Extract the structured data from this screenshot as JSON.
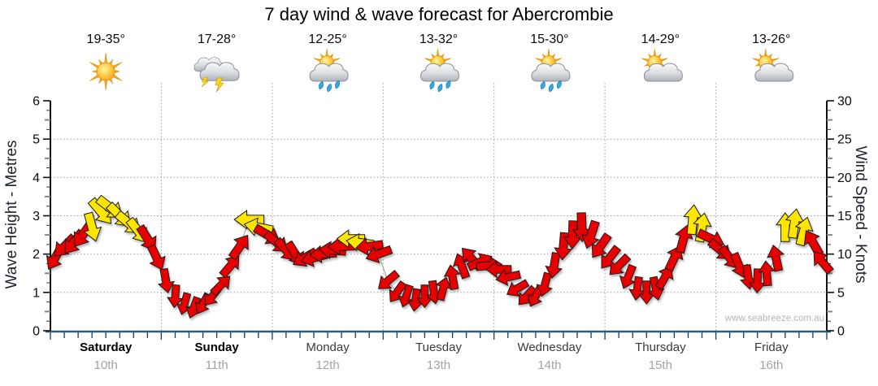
{
  "title": "7 day wind & wave forecast for Abercrombie",
  "watermark": "www.seabreeze.com.au",
  "days": [
    {
      "name": "Saturday",
      "date": "10th",
      "temp": "19-35°",
      "icon": "sunny",
      "weekend": true
    },
    {
      "name": "Sunday",
      "date": "11th",
      "temp": "17-28°",
      "icon": "thunderstorms",
      "weekend": true
    },
    {
      "name": "Monday",
      "date": "12th",
      "temp": "12-25°",
      "icon": "rain",
      "weekend": false
    },
    {
      "name": "Tuesday",
      "date": "13th",
      "temp": "13-32°",
      "icon": "rain",
      "weekend": false
    },
    {
      "name": "Wednesday",
      "date": "14th",
      "temp": "15-30°",
      "icon": "rain",
      "weekend": false
    },
    {
      "name": "Thursday",
      "date": "15th",
      "temp": "14-29°",
      "icon": "partly-cloudy",
      "weekend": false
    },
    {
      "name": "Friday",
      "date": "16th",
      "temp": "13-26°",
      "icon": "partly-cloudy",
      "weekend": false
    }
  ],
  "chart_data": {
    "type": "scatter",
    "variant": "wind-arrow-forecast",
    "title": "7 day wind & wave forecast for Abercrombie",
    "x_categories": [
      "Saturday 10th",
      "Sunday 11th",
      "Monday 12th",
      "Tuesday 13th",
      "Wednesday 14th",
      "Thursday 15th",
      "Friday 16th"
    ],
    "left_axis": {
      "label": "Wave Height - Metres",
      "range": [
        0,
        6
      ],
      "tick_labels": [
        "0",
        "1",
        "2",
        "3",
        "4",
        "5",
        "6"
      ]
    },
    "right_axis": {
      "label": "Wind Speed - Knots",
      "range": [
        0,
        30
      ],
      "tick_labels": [
        "0",
        "5",
        "10",
        "15",
        "20",
        "25",
        "30"
      ]
    },
    "grid": true,
    "arrow_colors": {
      "r": "#e60000",
      "y": "#ffe600"
    },
    "time_step_hours": 2,
    "point_fields": [
      "day_index",
      "hour",
      "wind_speed_knots",
      "arrow_direction_deg_screen",
      "color"
    ],
    "points": [
      [
        0,
        0,
        9.5,
        210,
        "r"
      ],
      [
        0,
        2,
        11,
        225,
        "r"
      ],
      [
        0,
        4,
        11.5,
        218,
        "r"
      ],
      [
        0,
        6,
        12.5,
        215,
        "r"
      ],
      [
        0,
        8,
        13.5,
        165,
        "y"
      ],
      [
        0,
        10,
        15.5,
        140,
        "y"
      ],
      [
        0,
        12,
        16,
        128,
        "y"
      ],
      [
        0,
        14,
        15,
        135,
        "y"
      ],
      [
        0,
        16,
        14,
        130,
        "y"
      ],
      [
        0,
        18,
        13,
        142,
        "y"
      ],
      [
        0,
        20,
        12,
        148,
        "r"
      ],
      [
        0,
        22,
        9.5,
        155,
        "r"
      ],
      [
        1,
        0,
        6.5,
        170,
        "r"
      ],
      [
        1,
        2,
        4.5,
        185,
        "r"
      ],
      [
        1,
        4,
        3.5,
        195,
        "r"
      ],
      [
        1,
        6,
        3,
        200,
        "r"
      ],
      [
        1,
        8,
        3.5,
        208,
        "r"
      ],
      [
        1,
        10,
        4.5,
        218,
        "r"
      ],
      [
        1,
        12,
        6,
        45,
        "r"
      ],
      [
        1,
        14,
        8.5,
        40,
        "r"
      ],
      [
        1,
        16,
        11,
        35,
        "r"
      ],
      [
        1,
        18,
        14.5,
        270,
        "y"
      ],
      [
        1,
        20,
        13.5,
        282,
        "y"
      ],
      [
        1,
        22,
        12.5,
        120,
        "r"
      ],
      [
        2,
        0,
        11.5,
        130,
        "r"
      ],
      [
        2,
        2,
        10.5,
        138,
        "r"
      ],
      [
        2,
        4,
        10,
        148,
        "r"
      ],
      [
        2,
        6,
        9.5,
        240,
        "r"
      ],
      [
        2,
        8,
        9.5,
        255,
        "r"
      ],
      [
        2,
        10,
        10,
        265,
        "r"
      ],
      [
        2,
        12,
        10.5,
        275,
        "r"
      ],
      [
        2,
        14,
        11,
        268,
        "r"
      ],
      [
        2,
        16,
        12,
        270,
        "y"
      ],
      [
        2,
        18,
        11.5,
        278,
        "y"
      ],
      [
        2,
        20,
        11,
        262,
        "r"
      ],
      [
        2,
        22,
        10,
        250,
        "r"
      ],
      [
        3,
        0,
        6.5,
        230,
        "r"
      ],
      [
        3,
        2,
        5,
        215,
        "r"
      ],
      [
        3,
        4,
        4.5,
        198,
        "r"
      ],
      [
        3,
        6,
        4,
        188,
        "r"
      ],
      [
        3,
        8,
        4.5,
        180,
        "r"
      ],
      [
        3,
        10,
        5,
        172,
        "r"
      ],
      [
        3,
        12,
        5.5,
        15,
        "r"
      ],
      [
        3,
        14,
        7,
        350,
        "r"
      ],
      [
        3,
        16,
        8.5,
        340,
        "r"
      ],
      [
        3,
        18,
        9.5,
        318,
        "r"
      ],
      [
        3,
        20,
        9,
        65,
        "r"
      ],
      [
        3,
        22,
        8.5,
        85,
        "r"
      ],
      [
        4,
        0,
        8,
        270,
        "r"
      ],
      [
        4,
        2,
        7,
        258,
        "r"
      ],
      [
        4,
        4,
        5.5,
        240,
        "r"
      ],
      [
        4,
        6,
        4.5,
        222,
        "r"
      ],
      [
        4,
        8,
        4.5,
        208,
        "r"
      ],
      [
        4,
        10,
        6,
        195,
        "r"
      ],
      [
        4,
        12,
        8.5,
        190,
        "r"
      ],
      [
        4,
        14,
        11,
        185,
        "r"
      ],
      [
        4,
        16,
        12.5,
        182,
        "r"
      ],
      [
        4,
        18,
        13.5,
        178,
        "r"
      ],
      [
        4,
        20,
        12.5,
        198,
        "r"
      ],
      [
        4,
        22,
        11,
        215,
        "r"
      ],
      [
        5,
        0,
        9.5,
        218,
        "r"
      ],
      [
        5,
        2,
        8.5,
        225,
        "r"
      ],
      [
        5,
        4,
        7,
        202,
        "r"
      ],
      [
        5,
        6,
        5.5,
        188,
        "r"
      ],
      [
        5,
        8,
        5,
        180,
        "r"
      ],
      [
        5,
        10,
        5.5,
        168,
        "r"
      ],
      [
        5,
        12,
        7,
        30,
        "r"
      ],
      [
        5,
        14,
        9.5,
        25,
        "r"
      ],
      [
        5,
        16,
        12,
        15,
        "r"
      ],
      [
        5,
        18,
        14.5,
        5,
        "y"
      ],
      [
        5,
        20,
        13.5,
        10,
        "y"
      ],
      [
        5,
        22,
        12,
        115,
        "r"
      ],
      [
        6,
        0,
        10.5,
        130,
        "r"
      ],
      [
        6,
        2,
        9.5,
        142,
        "r"
      ],
      [
        6,
        4,
        8.5,
        158,
        "r"
      ],
      [
        6,
        6,
        7,
        172,
        "r"
      ],
      [
        6,
        8,
        6.5,
        182,
        "r"
      ],
      [
        6,
        10,
        7.5,
        355,
        "r"
      ],
      [
        6,
        12,
        9.5,
        348,
        "r"
      ],
      [
        6,
        14,
        13.5,
        0,
        "y"
      ],
      [
        6,
        16,
        14,
        8,
        "y"
      ],
      [
        6,
        18,
        13,
        15,
        "y"
      ],
      [
        6,
        20,
        11.5,
        330,
        "r"
      ],
      [
        6,
        22,
        9,
        320,
        "r"
      ]
    ]
  }
}
